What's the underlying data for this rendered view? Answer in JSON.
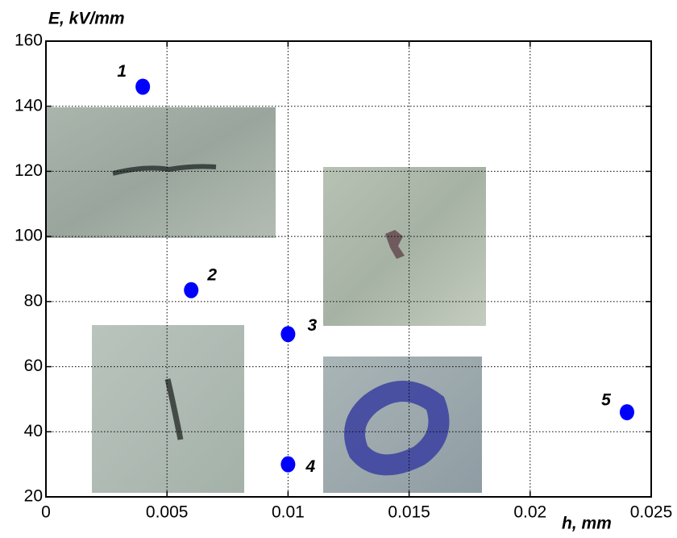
{
  "chart_data": {
    "type": "scatter",
    "y_label": "E, kV/mm",
    "x_label": "h, mm",
    "x": [
      0.004,
      0.006,
      0.01,
      0.01,
      0.024
    ],
    "values": [
      146,
      83.5,
      70,
      30,
      46
    ],
    "point_labels": [
      "1",
      "2",
      "3",
      "4",
      "5"
    ],
    "color": "#0000ff",
    "xlim": [
      0,
      0.025
    ],
    "xticks": [
      0,
      0.005,
      0.01,
      0.015,
      0.02,
      0.025
    ],
    "ylim": [
      20,
      160
    ],
    "yticks": [
      20,
      40,
      60,
      80,
      100,
      120,
      140,
      160
    ],
    "grid": true
  }
}
